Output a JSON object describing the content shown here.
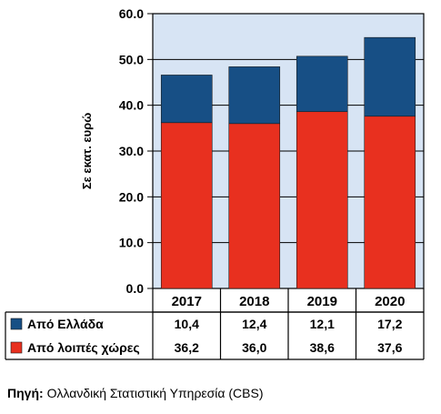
{
  "chart_data": {
    "type": "bar",
    "stacked": true,
    "categories": [
      "2017",
      "2018",
      "2019",
      "2020"
    ],
    "series": [
      {
        "name": "Από λοιπές χώρες",
        "values": [
          36.2,
          36.0,
          38.6,
          37.6
        ],
        "color": "#e8301f",
        "value_labels": [
          "36,2",
          "36,0",
          "38,6",
          "37,6"
        ]
      },
      {
        "name": "Από Ελλάδα",
        "values": [
          10.4,
          12.4,
          12.1,
          17.2
        ],
        "color": "#174f85",
        "value_labels": [
          "10,4",
          "12,4",
          "12,1",
          "17,2"
        ]
      }
    ],
    "ylabel": "Σε εκατ. ευρώ",
    "ylim": [
      0,
      60
    ],
    "yticks": [
      "0.0",
      "10.0",
      "20.0",
      "30.0",
      "40.0",
      "50.0",
      "60.0"
    ],
    "grid": true,
    "plot_background": "#d7e4f4",
    "legend_placement": "data-table-below"
  },
  "source": {
    "prefix": "Πηγή:",
    "text": "Ολλανδική Στατιστική Υπηρεσία (CBS)"
  }
}
